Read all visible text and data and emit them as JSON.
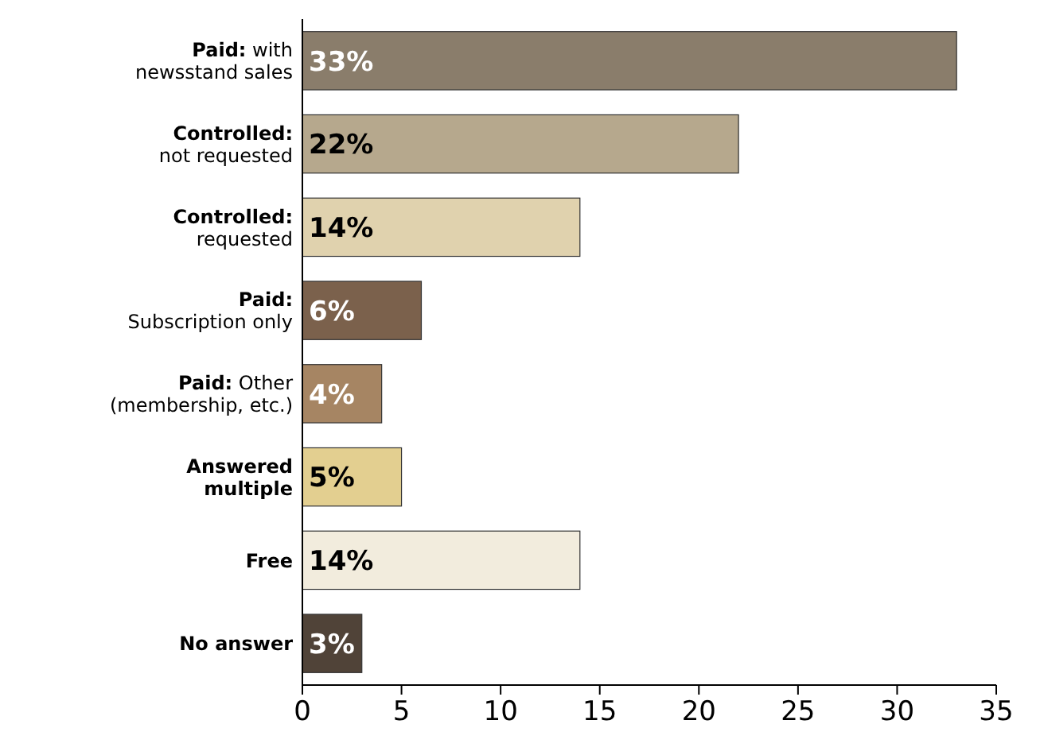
{
  "chart_data": {
    "type": "bar",
    "orientation": "horizontal",
    "categories": [
      "Paid: with\nnewsstand sales",
      "Controlled:\nnot requested",
      "Controlled:\nrequested",
      "Paid:\nSubscription only",
      "Paid: Other\n(membership, etc.)",
      "Answered\nmultiple",
      "Free",
      "No answer"
    ],
    "values": [
      33,
      22,
      14,
      6,
      4,
      5,
      14,
      3
    ],
    "colors": [
      "#8a7d6b",
      "#b6a88d",
      "#e0d2ae",
      "#7b614c",
      "#a68563",
      "#e3cf90",
      "#f2ecdd",
      "#504338"
    ],
    "value_labels": [
      "33%",
      "22%",
      "14%",
      "6%",
      "4%",
      "5%",
      "14%",
      "3%"
    ],
    "xlim": [
      0,
      35
    ],
    "xticks": [
      0,
      5,
      10,
      15,
      20,
      25,
      30,
      35
    ],
    "grid": false
  }
}
